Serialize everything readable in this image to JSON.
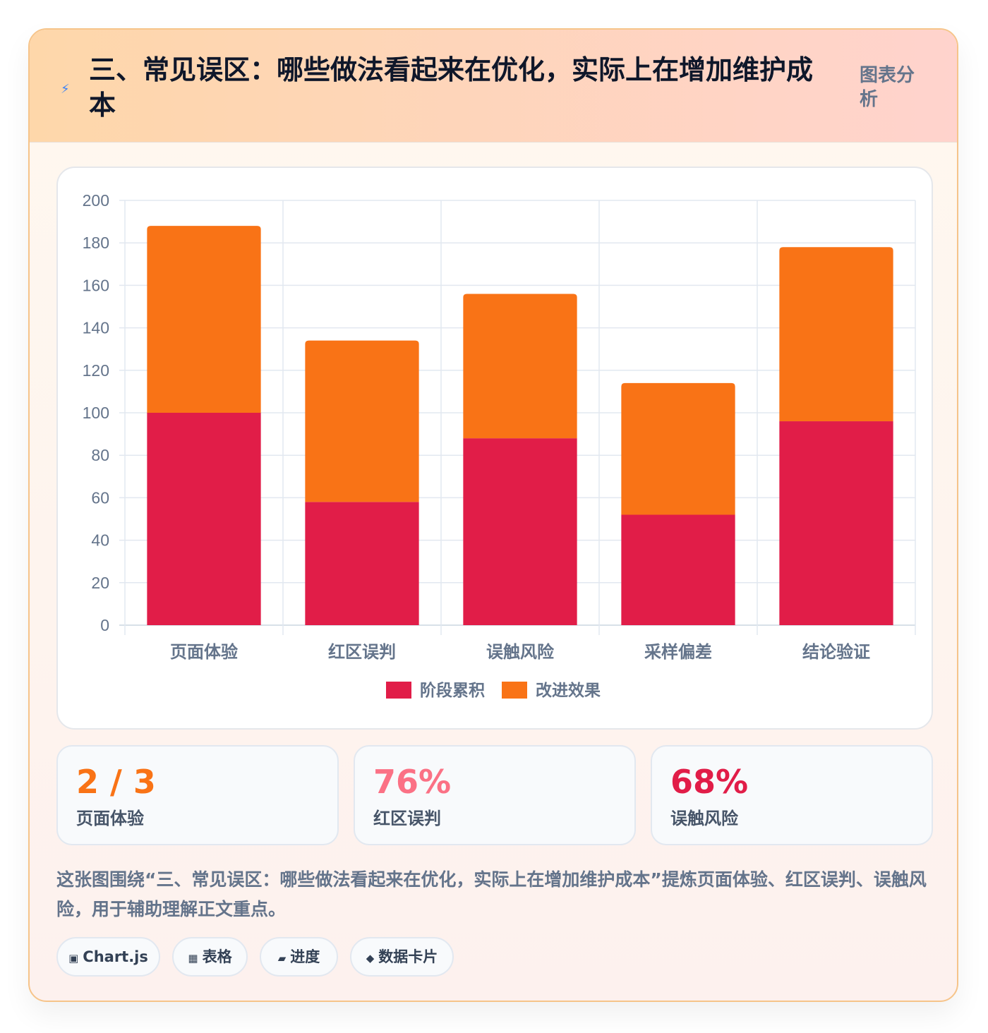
{
  "header": {
    "title": "三、常见误区：哪些做法看起来在优化，实际上在增加维护成本",
    "badge": "图表分析",
    "icon": "lightning-icon"
  },
  "colors": {
    "series_accumulate": "#e11d48",
    "series_improve": "#f97316",
    "stat1": "#f97316",
    "stat2": "#fb7185",
    "stat3": "#e11d48"
  },
  "chart_data": {
    "type": "bar",
    "stacked": true,
    "categories": [
      "页面体验",
      "红区误判",
      "误触风险",
      "采样偏差",
      "结论验证"
    ],
    "series": [
      {
        "name": "阶段累积",
        "values": [
          100,
          58,
          88,
          52,
          96
        ],
        "color": "#e11d48"
      },
      {
        "name": "改进效果",
        "values": [
          88,
          76,
          68,
          62,
          82
        ],
        "color": "#f97316"
      }
    ],
    "ylim": [
      0,
      200
    ],
    "yticks": [
      0,
      20,
      40,
      60,
      80,
      100,
      120,
      140,
      160,
      180,
      200
    ],
    "grid": true,
    "legend": "bottom"
  },
  "stats": [
    {
      "value": "2 / 3",
      "label": "页面体验"
    },
    {
      "value": "76%",
      "label": "红区误判"
    },
    {
      "value": "68%",
      "label": "误触风险"
    }
  ],
  "description": "这张图围绕“三、常见误区：哪些做法看起来在优化，实际上在增加维护成本”提炼页面体验、红区误判、误触风险，用于辅助理解正文重点。",
  "tags": [
    {
      "icon": "▣",
      "label": "Chart.js"
    },
    {
      "icon": "▦",
      "label": "表格"
    },
    {
      "icon": "▰",
      "label": "进度"
    },
    {
      "icon": "◆",
      "label": "数据卡片"
    }
  ]
}
